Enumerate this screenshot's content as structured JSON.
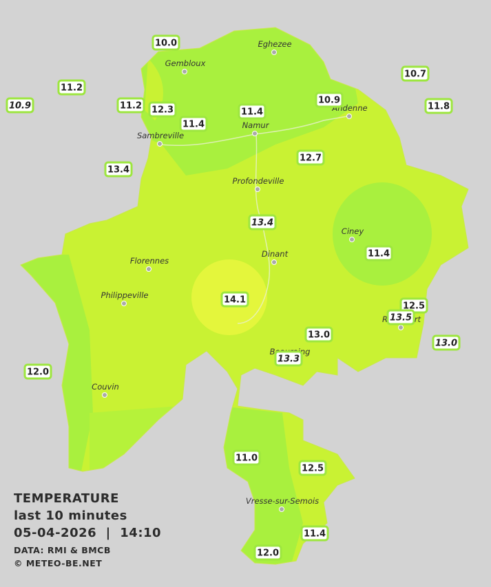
{
  "legend": {
    "title": "TEMPERATURE",
    "subtitle": "last 10 minutes",
    "datetime": "05-04-2026  |  14:10",
    "source": "DATA: RMI & BMCB",
    "copyright": "© METEO-BE.NET"
  },
  "cities": [
    "Eghezee",
    "Gembloux",
    "Andenne",
    "Namur",
    "Sambreville",
    "Profondeville",
    "Ciney",
    "Dinant",
    "Florennes",
    "Philippeville",
    "Couvin",
    "Vresse-sur-Semois",
    "Rochefort",
    "Beauraing"
  ],
  "stations": [
    {
      "value": "10.0",
      "italic": false
    },
    {
      "value": "11.2",
      "italic": false
    },
    {
      "value": "10.9",
      "italic": true
    },
    {
      "value": "11.2",
      "italic": false
    },
    {
      "value": "12.3",
      "italic": false
    },
    {
      "value": "11.4",
      "italic": false
    },
    {
      "value": "11.4",
      "italic": false
    },
    {
      "value": "10.9",
      "italic": false
    },
    {
      "value": "10.7",
      "italic": false
    },
    {
      "value": "11.8",
      "italic": false
    },
    {
      "value": "13.4",
      "italic": false
    },
    {
      "value": "12.7",
      "italic": false
    },
    {
      "value": "13.4",
      "italic": true
    },
    {
      "value": "11.4",
      "italic": false
    },
    {
      "value": "14.1",
      "italic": false
    },
    {
      "value": "12.5",
      "italic": false
    },
    {
      "value": "13.5",
      "italic": true
    },
    {
      "value": "13.0",
      "italic": false
    },
    {
      "value": "13.3",
      "italic": true
    },
    {
      "value": "13.0",
      "italic": true
    },
    {
      "value": "12.0",
      "italic": false
    },
    {
      "value": "11.0",
      "italic": false
    },
    {
      "value": "12.5",
      "italic": false
    },
    {
      "value": "11.4",
      "italic": false
    },
    {
      "value": "12.0",
      "italic": false
    }
  ]
}
